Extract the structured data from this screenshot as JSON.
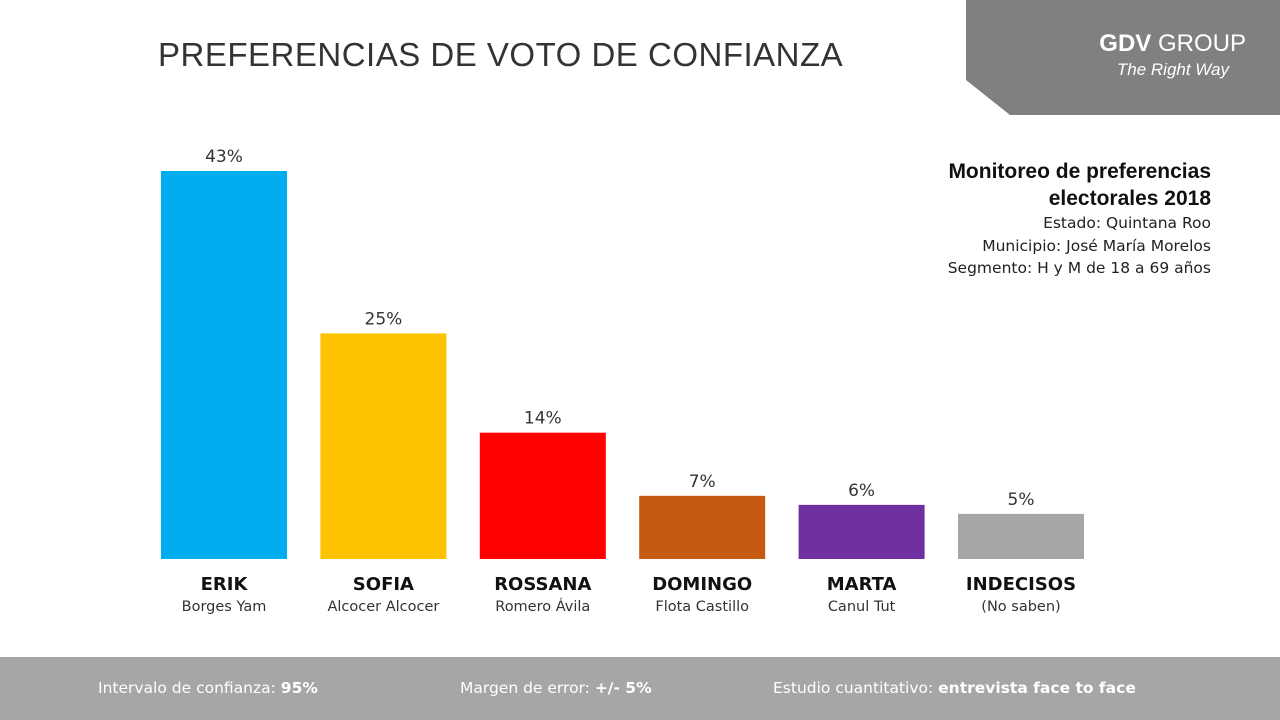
{
  "title": "PREFERENCIAS DE VOTO DE CONFIANZA",
  "brand": {
    "name_bold": "GDV",
    "name_rest": "GROUP",
    "tagline": "The Right Way",
    "bg_color": "#808080"
  },
  "info": {
    "title_line1": "Monitoreo de preferencias",
    "title_line2": "electorales 2018",
    "estado": "Estado: Quintana Roo",
    "municipio": "Municipio: José María Morelos",
    "segmento": "Segmento: H y M de 18 a 69 años"
  },
  "chart_data": {
    "type": "bar",
    "categories": [
      "ERIK",
      "SOFIA",
      "ROSSANA",
      "DOMINGO",
      "MARTA",
      "INDECISOS"
    ],
    "subtitles": [
      "Borges Yam",
      "Alcocer Alcocer",
      "Romero Ávila",
      "Flota Castillo",
      "Canul Tut",
      "(No saben)"
    ],
    "values": [
      43,
      25,
      14,
      7,
      6,
      5
    ],
    "value_labels": [
      "43%",
      "25%",
      "14%",
      "7%",
      "6%",
      "5%"
    ],
    "colors": [
      "#00adef",
      "#fdc200",
      "#ff0000",
      "#c55a11",
      "#7030a0",
      "#a6a6a6"
    ],
    "unit": "%",
    "title": "",
    "xlabel": "",
    "ylabel": "",
    "ylim": [
      0,
      43
    ],
    "grid": false,
    "legend": "none"
  },
  "footer": {
    "intervalo_label": "Intervalo de confianza: ",
    "intervalo_value": "95%",
    "margen_label": "Margen de error: ",
    "margen_value": "+/- 5%",
    "estudio_label": "Estudio cuantitativo: ",
    "estudio_value": "entrevista face to face",
    "bg_color": "#a6a6a6"
  }
}
